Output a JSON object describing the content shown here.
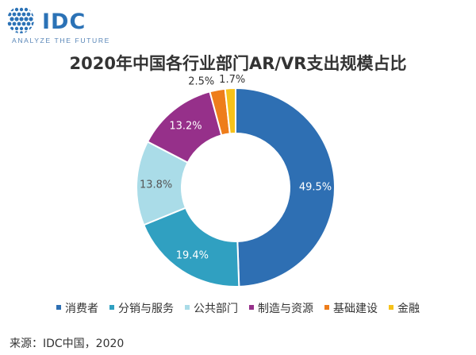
{
  "logo": {
    "text": "IDC",
    "tagline": "ANALYZE THE FUTURE"
  },
  "source": "来源：IDC中国，2020",
  "chart_data": {
    "type": "pie",
    "title": "2020年中国各行业部门AR/VR支出规模占比",
    "categories": [
      "消费者",
      "分销与服务",
      "公共部门",
      "制造与资源",
      "基础建设",
      "金融"
    ],
    "values": [
      49.5,
      19.4,
      13.8,
      13.2,
      2.5,
      1.7
    ],
    "labels": [
      "49.5%",
      "19.4%",
      "13.8%",
      "13.2%",
      "2.5%",
      "1.7%"
    ],
    "unit": "%",
    "colors": [
      "#2e6fb3",
      "#30a0c1",
      "#aadce8",
      "#96308a",
      "#ee7d1b",
      "#f6c21a"
    ],
    "donut": true,
    "legend_position": "bottom"
  }
}
